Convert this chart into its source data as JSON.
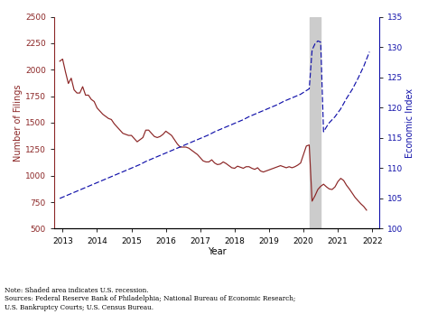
{
  "xlabel": "Year",
  "ylabel_left": "Number of Filings",
  "ylabel_right": "Economic Index",
  "note": "Note: Shaded area indicates U.S. recession.\nSources: Federal Reserve Bank of Philadelphia; National Bureau of Economic Research;\nU.S. Bankruptcy Courts; U.S. Census Bureau.",
  "recession_start": 2020.17,
  "recession_end": 2020.5,
  "red_color": "#8B2525",
  "blue_color": "#1111AA",
  "shading_color": "#CCCCCC",
  "ylim_left": [
    500,
    2500
  ],
  "ylim_right": [
    100,
    135
  ],
  "yticks_left": [
    500,
    750,
    1000,
    1250,
    1500,
    1750,
    2000,
    2250,
    2500
  ],
  "yticks_right": [
    100,
    105,
    110,
    115,
    120,
    125,
    130,
    135
  ],
  "xlim": [
    2012.75,
    2022.2
  ],
  "xticks": [
    2013,
    2014,
    2015,
    2016,
    2017,
    2018,
    2019,
    2020,
    2021,
    2022
  ],
  "red_x": [
    2012.917,
    2013.0,
    2013.083,
    2013.167,
    2013.25,
    2013.333,
    2013.417,
    2013.5,
    2013.583,
    2013.667,
    2013.75,
    2013.833,
    2013.917,
    2014.0,
    2014.083,
    2014.167,
    2014.25,
    2014.333,
    2014.417,
    2014.5,
    2014.583,
    2014.667,
    2014.75,
    2014.833,
    2014.917,
    2015.0,
    2015.083,
    2015.167,
    2015.25,
    2015.333,
    2015.417,
    2015.5,
    2015.583,
    2015.667,
    2015.75,
    2015.833,
    2015.917,
    2016.0,
    2016.083,
    2016.167,
    2016.25,
    2016.333,
    2016.417,
    2016.5,
    2016.583,
    2016.667,
    2016.75,
    2016.833,
    2016.917,
    2017.0,
    2017.083,
    2017.167,
    2017.25,
    2017.333,
    2017.417,
    2017.5,
    2017.583,
    2017.667,
    2017.75,
    2017.833,
    2017.917,
    2018.0,
    2018.083,
    2018.167,
    2018.25,
    2018.333,
    2018.417,
    2018.5,
    2018.583,
    2018.667,
    2018.75,
    2018.833,
    2018.917,
    2019.0,
    2019.083,
    2019.167,
    2019.25,
    2019.333,
    2019.417,
    2019.5,
    2019.583,
    2019.667,
    2019.75,
    2019.833,
    2019.917,
    2020.0,
    2020.083,
    2020.167,
    2020.25,
    2020.333,
    2020.417,
    2020.5,
    2020.583,
    2020.667,
    2020.75,
    2020.833,
    2020.917,
    2021.0,
    2021.083,
    2021.167,
    2021.25,
    2021.333,
    2021.417,
    2021.5,
    2021.583,
    2021.667,
    2021.75,
    2021.833
  ],
  "red_y": [
    2080,
    2100,
    1980,
    1870,
    1920,
    1810,
    1780,
    1780,
    1840,
    1760,
    1760,
    1720,
    1700,
    1640,
    1610,
    1580,
    1560,
    1540,
    1530,
    1490,
    1460,
    1430,
    1400,
    1390,
    1380,
    1380,
    1350,
    1320,
    1340,
    1360,
    1430,
    1430,
    1400,
    1370,
    1360,
    1370,
    1390,
    1420,
    1400,
    1380,
    1340,
    1300,
    1270,
    1270,
    1270,
    1260,
    1240,
    1220,
    1200,
    1170,
    1140,
    1130,
    1130,
    1150,
    1120,
    1105,
    1110,
    1130,
    1115,
    1095,
    1075,
    1070,
    1090,
    1080,
    1070,
    1085,
    1085,
    1070,
    1060,
    1075,
    1045,
    1035,
    1045,
    1055,
    1065,
    1075,
    1085,
    1095,
    1085,
    1075,
    1085,
    1075,
    1085,
    1100,
    1120,
    1200,
    1280,
    1290,
    760,
    810,
    870,
    900,
    920,
    895,
    875,
    870,
    895,
    945,
    975,
    955,
    910,
    875,
    835,
    795,
    765,
    735,
    710,
    675
  ],
  "blue_x": [
    2012.917,
    2013.083,
    2013.25,
    2013.417,
    2013.583,
    2013.75,
    2013.917,
    2014.083,
    2014.25,
    2014.417,
    2014.583,
    2014.75,
    2014.917,
    2015.083,
    2015.25,
    2015.417,
    2015.583,
    2015.75,
    2015.917,
    2016.083,
    2016.25,
    2016.417,
    2016.583,
    2016.75,
    2016.917,
    2017.083,
    2017.25,
    2017.417,
    2017.583,
    2017.75,
    2017.917,
    2018.083,
    2018.25,
    2018.417,
    2018.583,
    2018.75,
    2018.917,
    2019.083,
    2019.25,
    2019.417,
    2019.583,
    2019.75,
    2019.917,
    2020.0,
    2020.083,
    2020.167,
    2020.25,
    2020.333,
    2020.417,
    2020.5,
    2020.583,
    2020.667,
    2020.75,
    2020.917,
    2021.083,
    2021.25,
    2021.417,
    2021.583,
    2021.75,
    2021.917
  ],
  "blue_y": [
    105.0,
    105.4,
    105.8,
    106.2,
    106.6,
    107.0,
    107.4,
    107.8,
    108.2,
    108.6,
    109.0,
    109.4,
    109.8,
    110.2,
    110.6,
    111.1,
    111.5,
    111.9,
    112.3,
    112.7,
    113.1,
    113.5,
    113.9,
    114.3,
    114.7,
    115.1,
    115.5,
    116.0,
    116.4,
    116.8,
    117.2,
    117.6,
    118.0,
    118.5,
    118.9,
    119.3,
    119.7,
    120.1,
    120.5,
    121.0,
    121.4,
    121.8,
    122.2,
    122.5,
    122.8,
    123.1,
    129.5,
    130.5,
    131.0,
    130.8,
    116.0,
    116.8,
    117.5,
    118.5,
    119.8,
    121.5,
    123.0,
    124.8,
    126.8,
    129.2
  ]
}
